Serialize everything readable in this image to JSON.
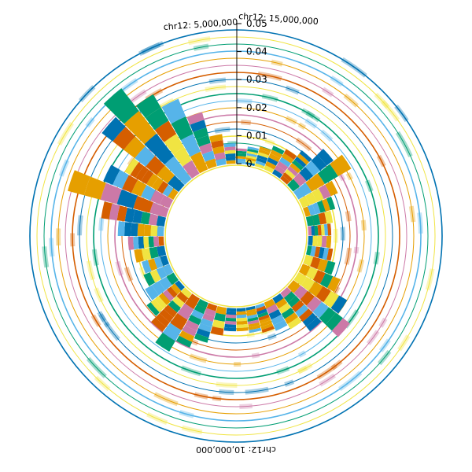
{
  "chart_data": {
    "type": "radial-stacked-bar",
    "genome_labels": [
      "chr12: 5,000,000",
      "chr12: 15,000,000",
      "chr12: 10,000,000"
    ],
    "y_ticks": [
      "0",
      "0.01",
      "0.02",
      "0.03",
      "0.04",
      "0.05"
    ],
    "ylim": [
      0,
      0.05
    ],
    "palette": [
      "#E69F00",
      "#56B4E9",
      "#009E73",
      "#F0E442",
      "#0072B2",
      "#D55E00",
      "#CC79A7"
    ],
    "sectors": 48,
    "stacked_values": [
      0.006,
      0.007,
      0.008,
      0.01,
      0.011,
      0.014,
      0.02,
      0.024,
      0.015,
      0.012,
      0.01,
      0.009,
      0.009,
      0.01,
      0.012,
      0.016,
      0.022,
      0.028,
      0.019,
      0.014,
      0.012,
      0.011,
      0.01,
      0.009,
      0.009,
      0.011,
      0.015,
      0.019,
      0.024,
      0.019,
      0.016,
      0.013,
      0.011,
      0.01,
      0.012,
      0.014,
      0.018,
      0.025,
      0.04,
      0.028,
      0.022,
      0.038,
      0.045,
      0.036,
      0.03,
      0.022,
      0.012,
      0.008
    ],
    "grid": true,
    "legend": "none"
  }
}
